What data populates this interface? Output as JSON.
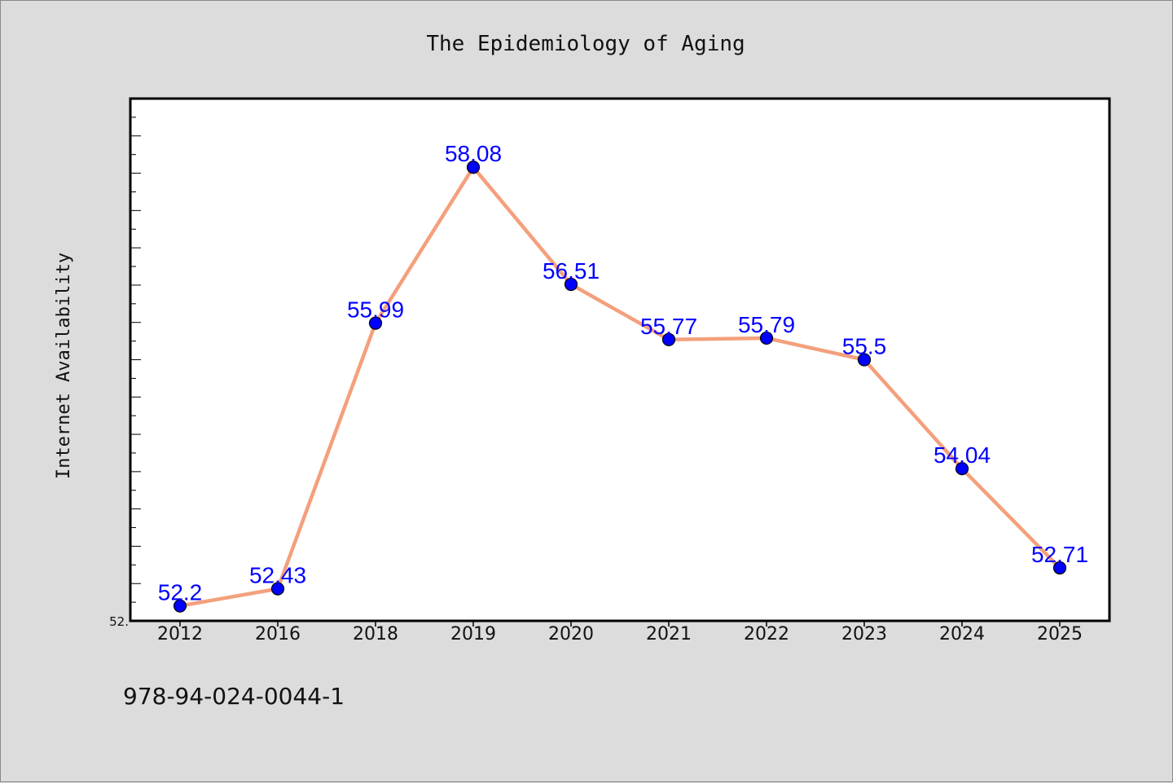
{
  "chart_data": {
    "type": "line",
    "title": "The Epidemiology of Aging",
    "xlabel": "",
    "ylabel": "Internet Availability",
    "categories": [
      "2012",
      "2016",
      "2018",
      "2019",
      "2020",
      "2021",
      "2022",
      "2023",
      "2024",
      "2025"
    ],
    "values": [
      52.2,
      52.43,
      55.99,
      58.08,
      56.51,
      55.77,
      55.79,
      55.5,
      54.04,
      52.71
    ],
    "data_labels": [
      "52.2",
      "52.43",
      "55.99",
      "58.08",
      "56.51",
      "55.77",
      "55.79",
      "55.5",
      "54.04",
      "52.71"
    ],
    "ytick_labels": [
      "52."
    ],
    "ylim": [
      52.0,
      59.0
    ],
    "grid": false,
    "legend": "none",
    "colors": {
      "line": "#f4a07c",
      "marker": "#0000ff",
      "label": "#0000ff",
      "plot_background": "#ffffff",
      "figure_background": "#dcdcdc"
    }
  },
  "footer": {
    "isbn": "978-94-024-0044-1"
  }
}
